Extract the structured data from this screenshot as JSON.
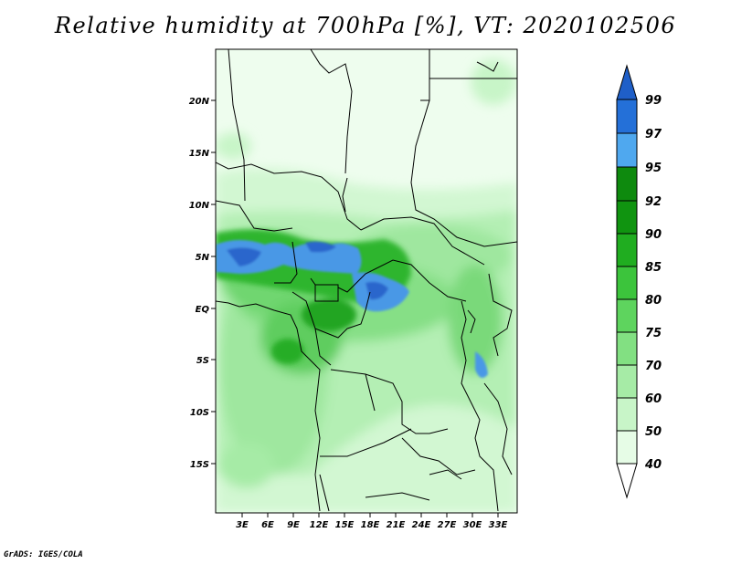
{
  "title": "Relative humidity at 700hPa [%], VT: 2020102506",
  "credit": "GrADS: IGES/COLA",
  "map": {
    "lat_labels": [
      "20N",
      "15N",
      "10N",
      "5N",
      "EQ",
      "5S",
      "10S",
      "15S"
    ],
    "lon_labels": [
      "3E",
      "6E",
      "9E",
      "12E",
      "15E",
      "18E",
      "21E",
      "24E",
      "27E",
      "30E",
      "33E"
    ],
    "field": "relative humidity",
    "units": "%"
  },
  "colorbar": {
    "levels": [
      "40",
      "50",
      "60",
      "70",
      "75",
      "80",
      "85",
      "90",
      "92",
      "95",
      "97",
      "99"
    ],
    "colors": [
      "#ffffff",
      "#e6fce6",
      "#c8f5c8",
      "#a6eba6",
      "#82e082",
      "#5ed45e",
      "#3cc43c",
      "#20ad20",
      "#109410",
      "#0e8a0e",
      "#4fa8ef",
      "#2470d8",
      "#1f5fc8"
    ]
  }
}
